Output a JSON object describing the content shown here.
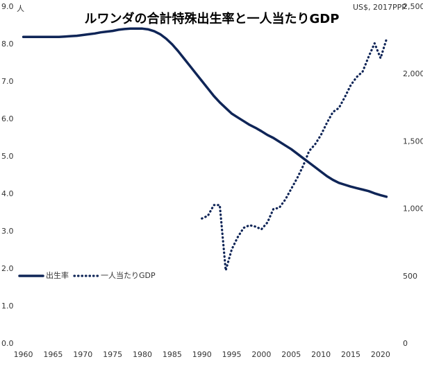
{
  "chart_data": {
    "type": "line",
    "title": "ルワンダの合計特殊出生率と一人当たりGDP",
    "y_unit": "人",
    "y2_unit": "US$, 2017PPP",
    "x": [
      1960,
      1961,
      1962,
      1963,
      1964,
      1965,
      1966,
      1967,
      1968,
      1969,
      1970,
      1971,
      1972,
      1973,
      1974,
      1975,
      1976,
      1977,
      1978,
      1979,
      1980,
      1981,
      1982,
      1983,
      1984,
      1985,
      1986,
      1987,
      1988,
      1989,
      1990,
      1991,
      1992,
      1993,
      1994,
      1995,
      1996,
      1997,
      1998,
      1999,
      2000,
      2001,
      2002,
      2003,
      2004,
      2005,
      2006,
      2007,
      2008,
      2009,
      2010,
      2011,
      2012,
      2013,
      2014,
      2015,
      2016,
      2017,
      2018,
      2019,
      2020,
      2021
    ],
    "series": [
      {
        "name": "出生率",
        "color": "#0f2557",
        "style": "solid",
        "values": [
          8.2,
          8.2,
          8.2,
          8.2,
          8.2,
          8.2,
          8.2,
          8.21,
          8.22,
          8.23,
          8.25,
          8.27,
          8.29,
          8.32,
          8.34,
          8.36,
          8.39,
          8.41,
          8.42,
          8.42,
          8.42,
          8.4,
          8.35,
          8.27,
          8.15,
          8.0,
          7.82,
          7.62,
          7.42,
          7.22,
          7.02,
          6.82,
          6.62,
          6.45,
          6.3,
          6.15,
          6.05,
          5.95,
          5.85,
          5.77,
          5.68,
          5.58,
          5.5,
          5.4,
          5.3,
          5.2,
          5.08,
          4.96,
          4.84,
          4.72,
          4.6,
          4.48,
          4.38,
          4.3,
          4.25,
          4.2,
          4.16,
          4.12,
          4.08,
          4.02,
          3.97,
          3.93
        ]
      },
      {
        "name": "一人当たりGDP",
        "color": "#0f2557",
        "style": "dotted",
        "axis": "y2",
        "values": [
          null,
          null,
          null,
          null,
          null,
          null,
          null,
          null,
          null,
          null,
          null,
          null,
          null,
          null,
          null,
          null,
          null,
          null,
          null,
          null,
          null,
          null,
          null,
          null,
          null,
          null,
          null,
          null,
          null,
          null,
          930,
          950,
          1030,
          1030,
          545,
          700,
          790,
          860,
          880,
          870,
          850,
          900,
          1000,
          1010,
          1070,
          1150,
          1230,
          1320,
          1430,
          1480,
          1550,
          1640,
          1720,
          1750,
          1830,
          1920,
          1980,
          2020,
          2130,
          2230,
          2120,
          2260
        ]
      }
    ],
    "xlim": [
      1959,
      2022
    ],
    "xticks": [
      1960,
      1965,
      1970,
      1975,
      1980,
      1985,
      1990,
      1995,
      2000,
      2005,
      2010,
      2015,
      2020
    ],
    "ylim": [
      0,
      9
    ],
    "yticks": [
      {
        "value": 0,
        "label": "0.0"
      },
      {
        "value": 1,
        "label": "1.0"
      },
      {
        "value": 2,
        "label": "2.0"
      },
      {
        "value": 3,
        "label": "3.0"
      },
      {
        "value": 4,
        "label": "4.0"
      },
      {
        "value": 5,
        "label": "5.0"
      },
      {
        "value": 6,
        "label": "6.0"
      },
      {
        "value": 7,
        "label": "7.0"
      },
      {
        "value": 8,
        "label": "8.0"
      },
      {
        "value": 9,
        "label": "9.0"
      }
    ],
    "y2lim": [
      0,
      2500
    ],
    "y2ticks": [
      0,
      500,
      {
        "value": 1000,
        "label": "1,000"
      },
      {
        "value": 1500,
        "label": "1,500"
      },
      {
        "value": 2000,
        "label": "2,000"
      },
      {
        "value": 2500,
        "label": "2,500"
      }
    ],
    "grid": false,
    "legend": "lower left"
  }
}
